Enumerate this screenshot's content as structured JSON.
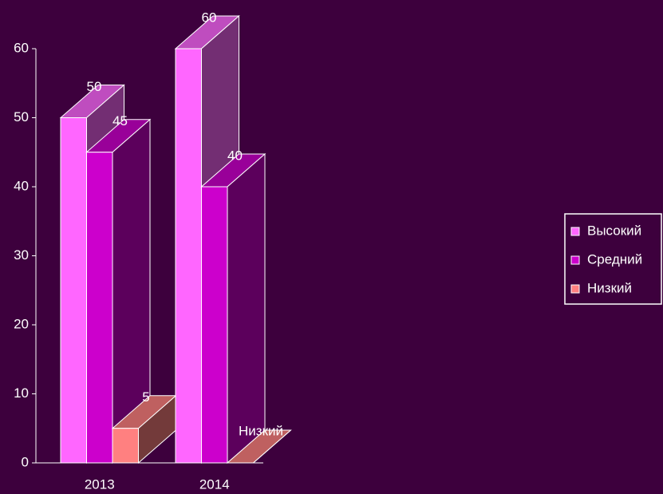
{
  "chart_data": {
    "type": "bar3d",
    "categories": [
      "2013",
      "2014"
    ],
    "series": [
      {
        "name": "Высокий",
        "color": "#ff66ff",
        "values": [
          50,
          60
        ]
      },
      {
        "name": "Средний",
        "color": "#cc00cc",
        "values": [
          45,
          40
        ]
      },
      {
        "name": "Низкий",
        "color": "#ff8080",
        "values": [
          5,
          0
        ]
      }
    ],
    "annotations": [
      "Низкий"
    ],
    "ylim": [
      0,
      60
    ],
    "yticks": [
      0,
      10,
      20,
      30,
      40,
      50,
      60
    ],
    "legend": "right"
  }
}
